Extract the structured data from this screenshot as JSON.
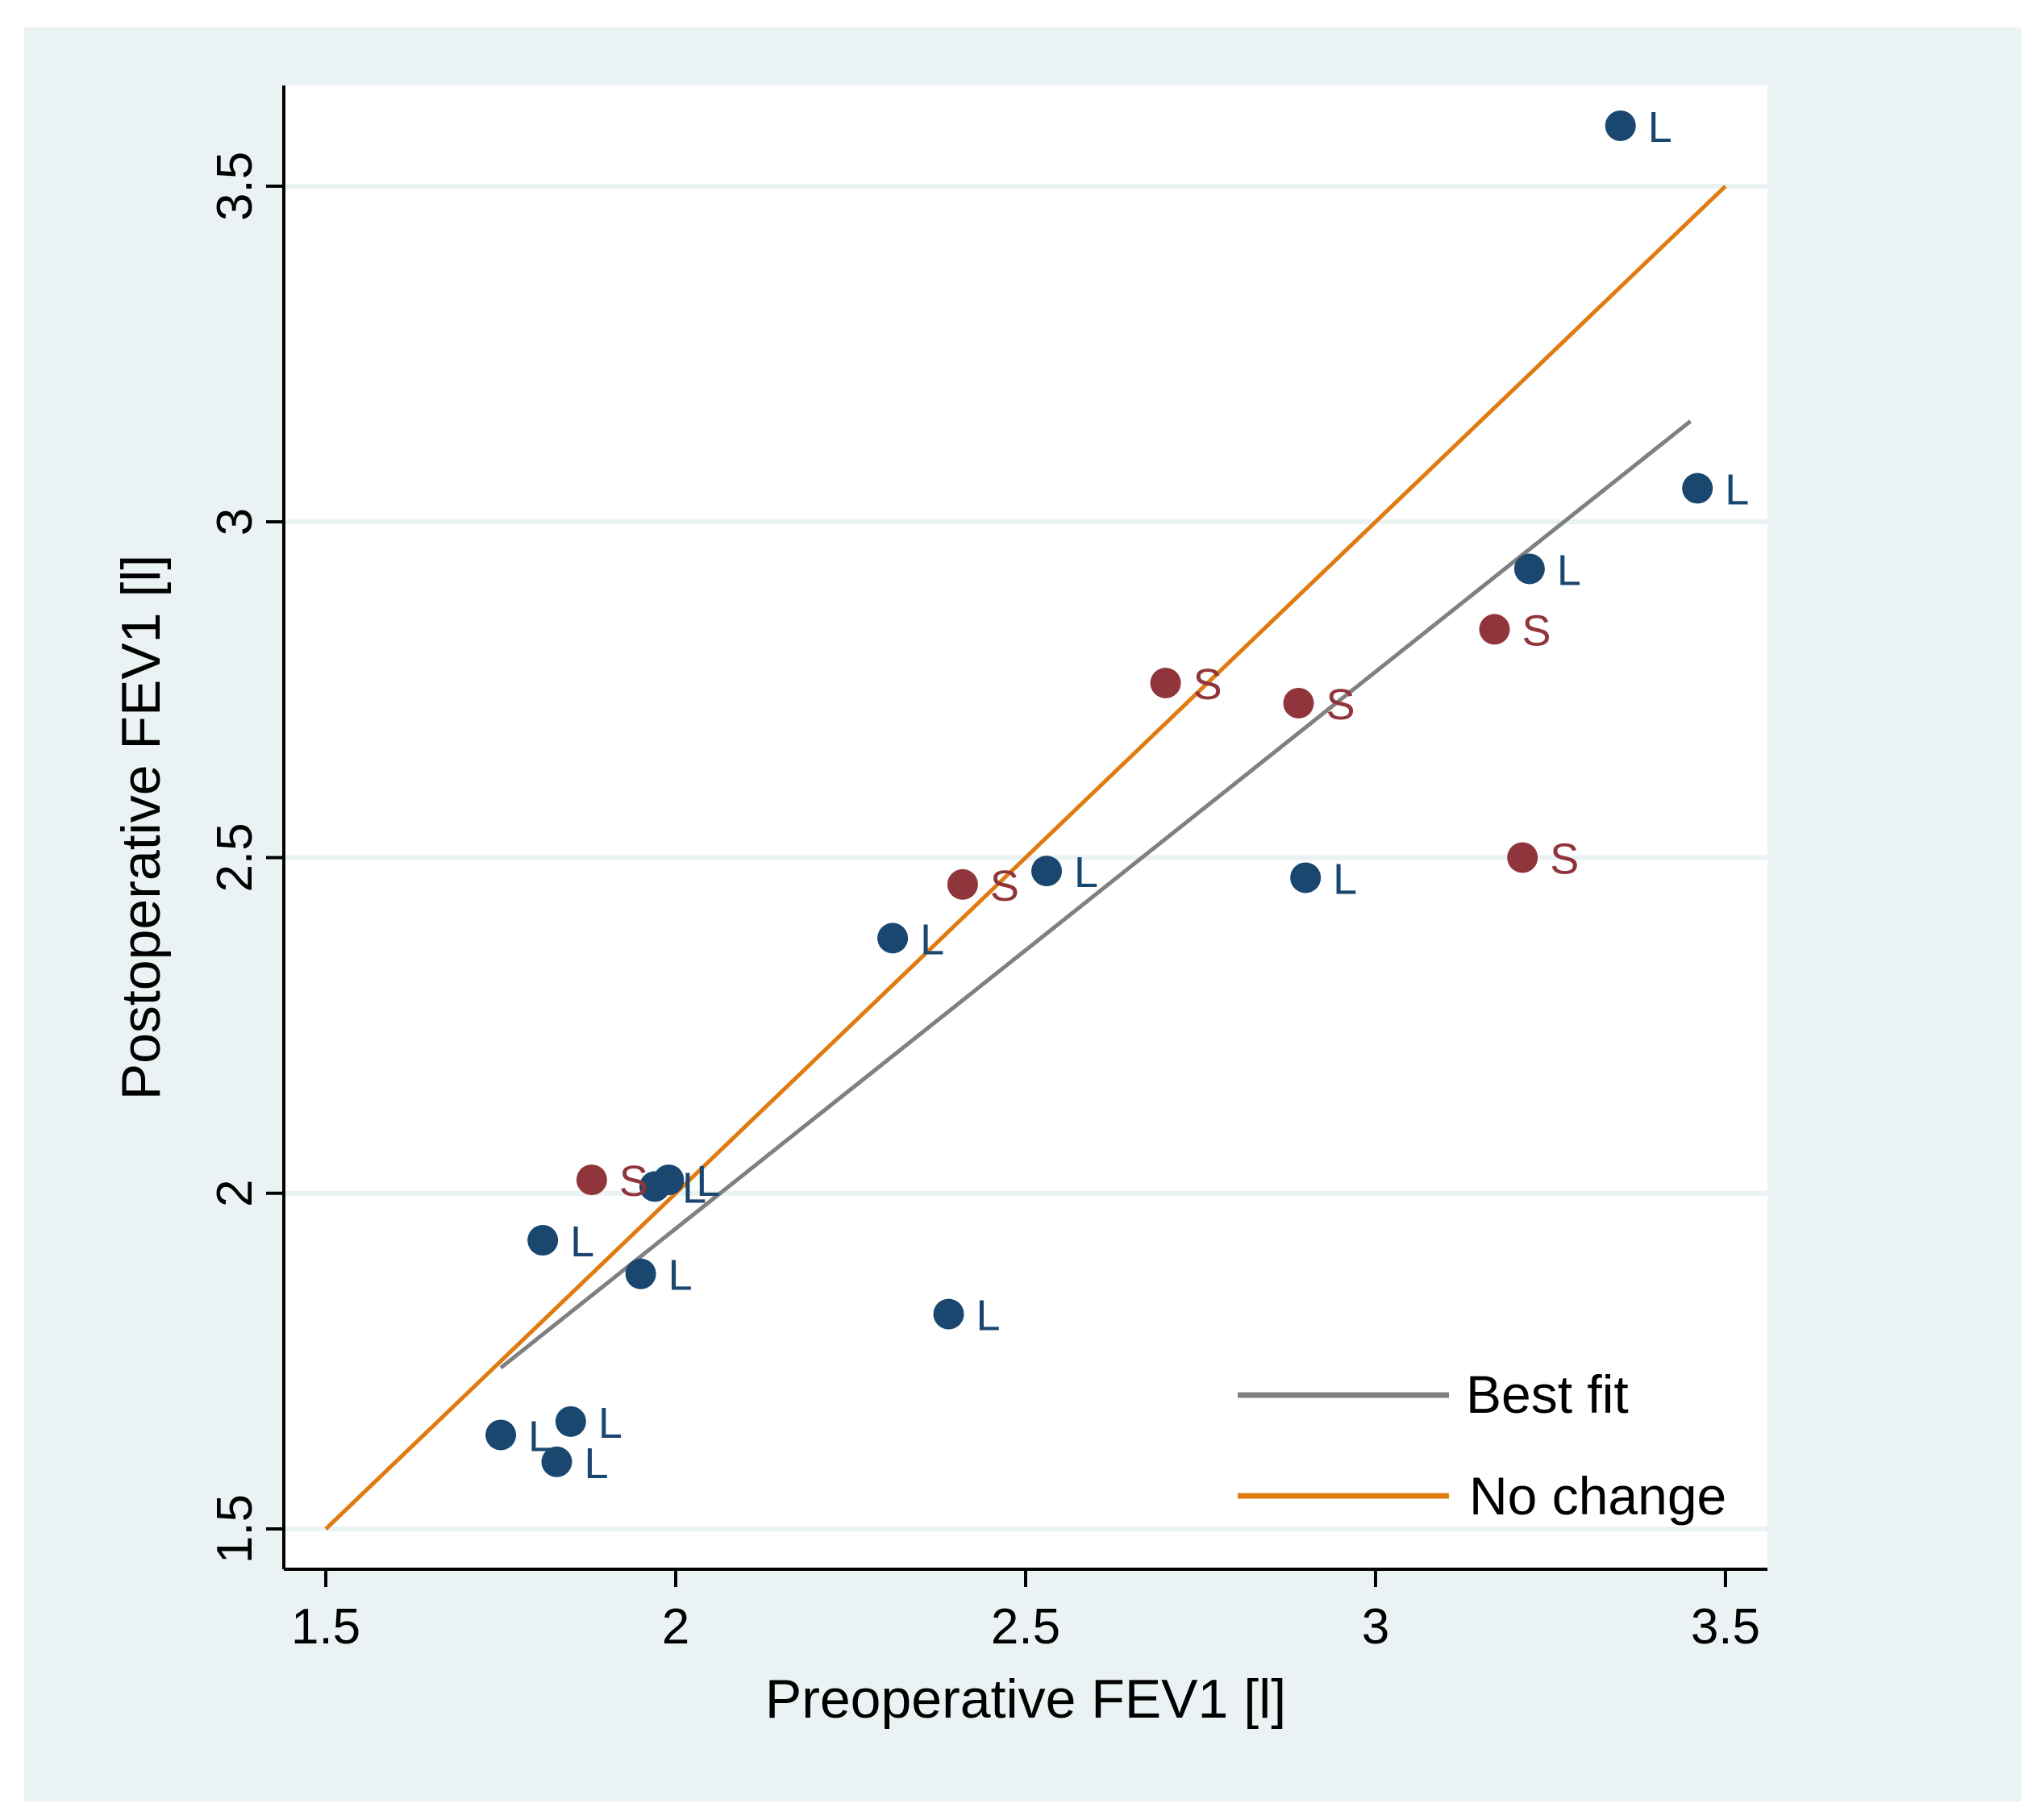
{
  "chart_data": {
    "type": "scatter",
    "title": "",
    "xlabel": "Preoperative FEV1 [l]",
    "ylabel": "Postoperative FEV1 [l]",
    "xlim": [
      1.44,
      3.56
    ],
    "ylim": [
      1.44,
      3.65
    ],
    "xticks": [
      1.5,
      2,
      2.5,
      3,
      3.5
    ],
    "xtick_labels": [
      "1.5",
      "2",
      "2.5",
      "3",
      "3.5"
    ],
    "yticks": [
      1.5,
      2,
      2.5,
      3,
      3.5
    ],
    "ytick_labels": [
      "1.5",
      "2",
      "2.5",
      "3",
      "3.5"
    ],
    "grid": "horizontal",
    "series": [
      {
        "name": "L",
        "color": "#1a476f",
        "points": [
          {
            "x": 3.35,
            "y": 3.59,
            "label": "L"
          },
          {
            "x": 3.46,
            "y": 3.05,
            "label": "L"
          },
          {
            "x": 3.22,
            "y": 2.93,
            "label": "L"
          },
          {
            "x": 2.53,
            "y": 2.48,
            "label": "L"
          },
          {
            "x": 2.9,
            "y": 2.47,
            "label": "L"
          },
          {
            "x": 2.31,
            "y": 2.38,
            "label": "L"
          },
          {
            "x": 1.97,
            "y": 2.01,
            "label": "L"
          },
          {
            "x": 1.99,
            "y": 2.02,
            "label": "L"
          },
          {
            "x": 1.81,
            "y": 1.93,
            "label": "L"
          },
          {
            "x": 1.95,
            "y": 1.88,
            "label": "L"
          },
          {
            "x": 2.39,
            "y": 1.82,
            "label": "L"
          },
          {
            "x": 1.75,
            "y": 1.64,
            "label": "L"
          },
          {
            "x": 1.85,
            "y": 1.66,
            "label": "L"
          },
          {
            "x": 1.83,
            "y": 1.6,
            "label": "L"
          }
        ]
      },
      {
        "name": "S",
        "color": "#90353b",
        "points": [
          {
            "x": 3.17,
            "y": 2.84,
            "label": "S"
          },
          {
            "x": 2.7,
            "y": 2.76,
            "label": "S"
          },
          {
            "x": 2.89,
            "y": 2.73,
            "label": "S"
          },
          {
            "x": 3.21,
            "y": 2.5,
            "label": "S"
          },
          {
            "x": 2.41,
            "y": 2.46,
            "label": "S"
          },
          {
            "x": 1.88,
            "y": 2.02,
            "label": "S"
          }
        ]
      }
    ],
    "lines": [
      {
        "name": "Best fit",
        "color": "#808080",
        "x": [
          1.75,
          3.45
        ],
        "y": [
          1.74,
          3.15
        ]
      },
      {
        "name": "No change",
        "color": "#e07b12",
        "x": [
          1.5,
          3.5
        ],
        "y": [
          1.5,
          3.5
        ]
      }
    ],
    "legend": {
      "position": "bottom-right",
      "entries": [
        "Best fit",
        "No change"
      ]
    }
  }
}
